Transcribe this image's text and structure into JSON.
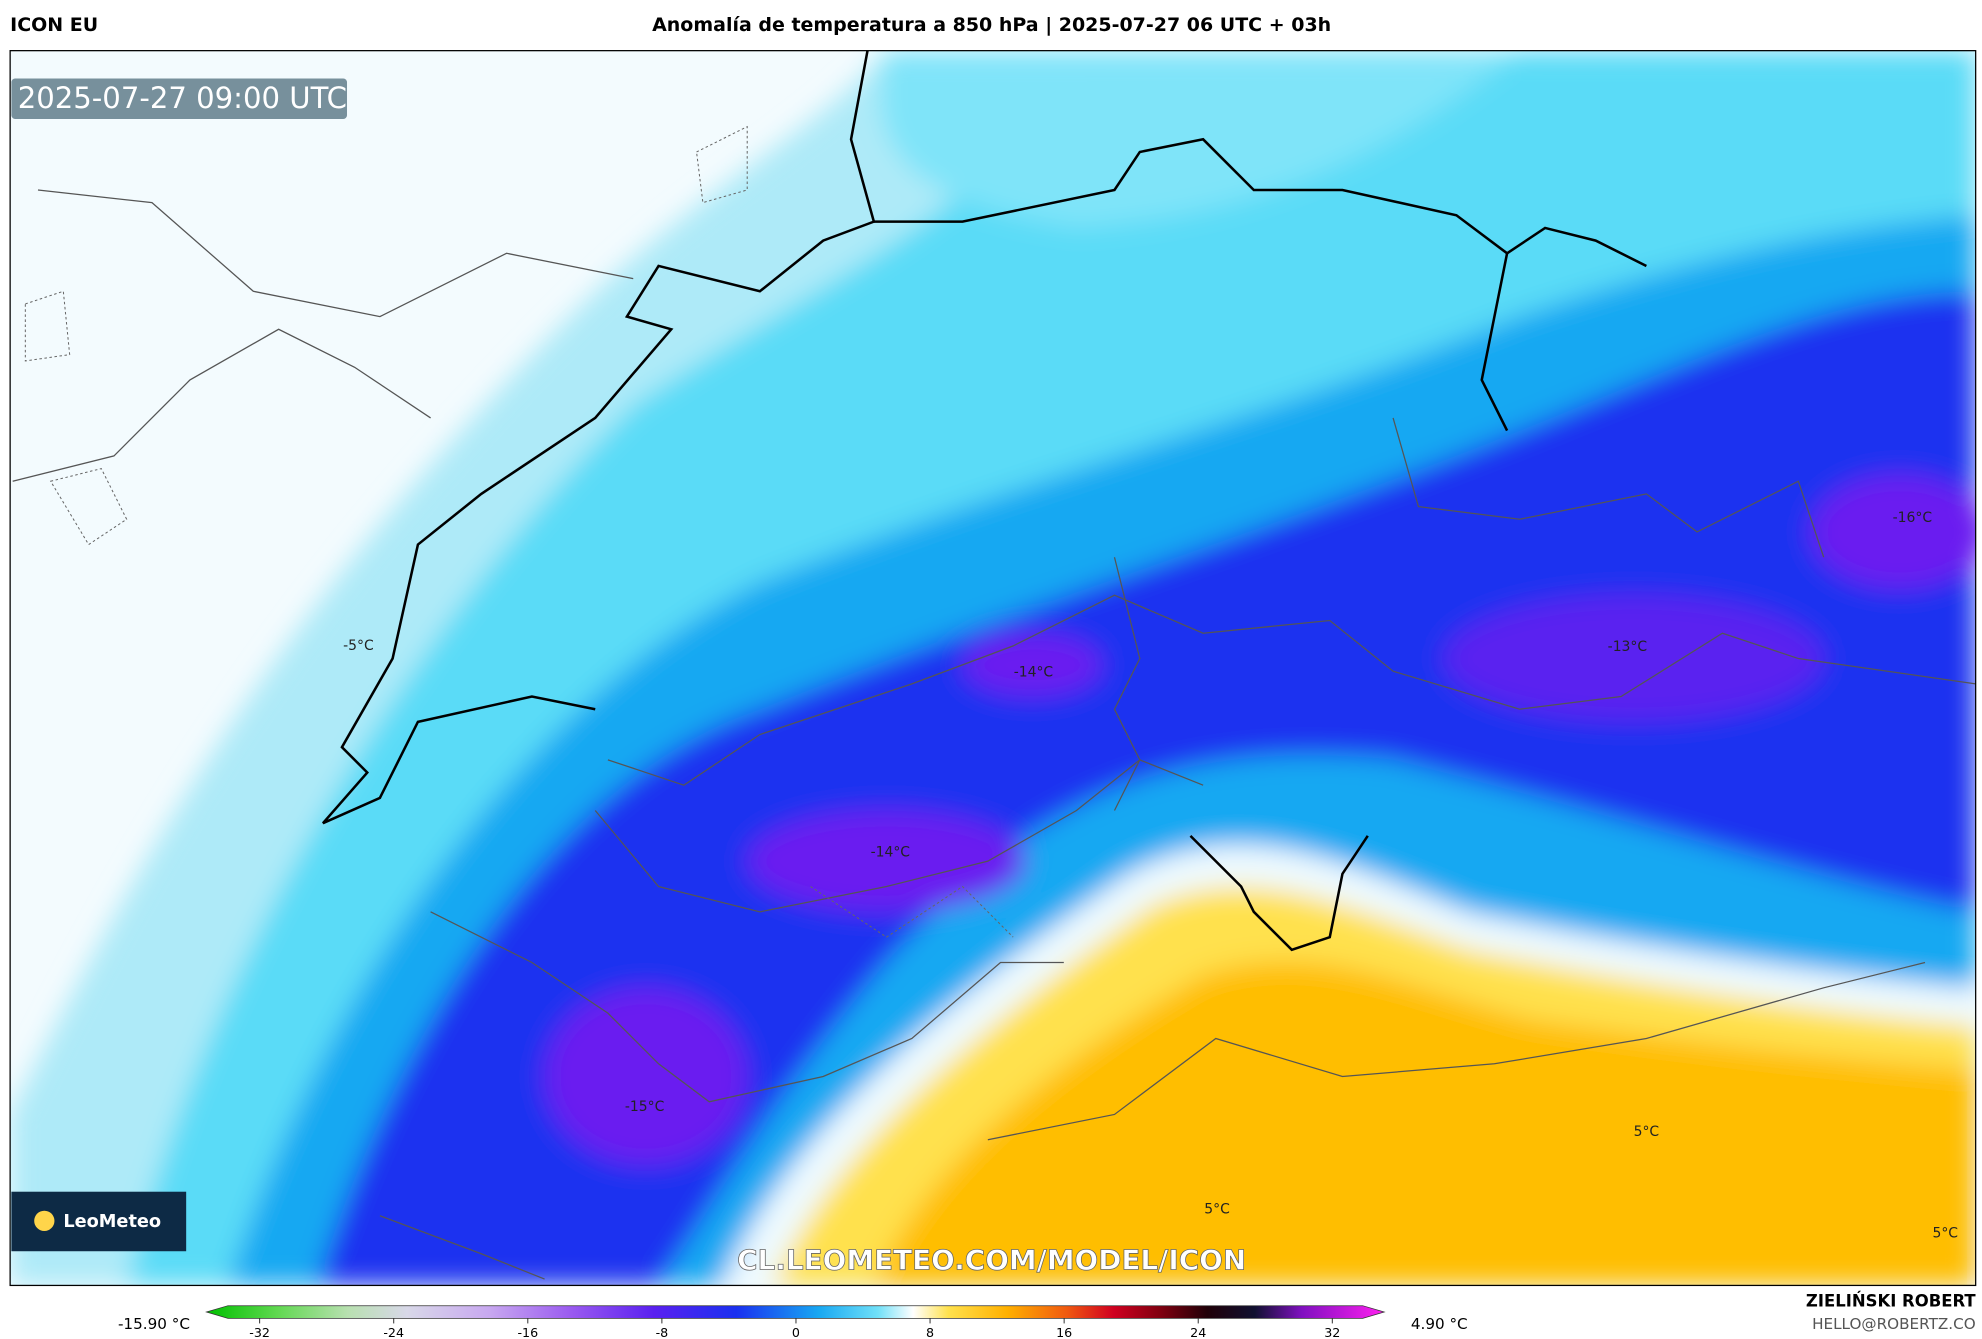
{
  "header": {
    "model": "ICON EU",
    "title": "Anomalía de temperatura a 850 hPa | 2025-07-27 06 UTC + 03h"
  },
  "map": {
    "timestamp": "2025-07-27 09:00 UTC",
    "labels": [
      "-16°C",
      "-13°C",
      "-14°C",
      "-14°C",
      "-15°C",
      "-5°C",
      "5°C",
      "5°C",
      "5°C"
    ],
    "watermark": "CL.LEOMETEO.COM/MODEL/ICON",
    "logo": "LeoMeteo"
  },
  "colorbar": {
    "min_label": "-15.90 °C",
    "max_label": "4.90 °C",
    "range": [
      -32,
      32
    ],
    "ticks": [
      -32,
      -24,
      -16,
      -8,
      0,
      8,
      16,
      24,
      32
    ]
  },
  "footer": {
    "author": "ZIELIŃSKI ROBERT",
    "email": "HELLO@ROBERTZ.CO"
  }
}
